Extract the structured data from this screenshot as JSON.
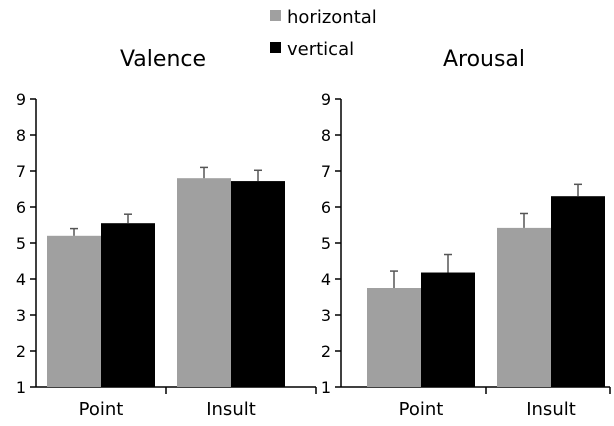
{
  "legend": {
    "items": [
      {
        "label": "horizontal",
        "color": "#a0a0a0"
      },
      {
        "label": "vertical",
        "color": "#000000"
      }
    ]
  },
  "chart_data": [
    {
      "type": "bar",
      "title": "Valence",
      "categories": [
        "Point",
        "Insult"
      ],
      "ylim": [
        1,
        9
      ],
      "yticks": [
        1,
        2,
        3,
        4,
        5,
        6,
        7,
        8,
        9
      ],
      "grid": false,
      "legend_position": "top-center",
      "series": [
        {
          "name": "horizontal",
          "color": "#a0a0a0",
          "values": [
            5.2,
            6.8
          ],
          "error": [
            0.2,
            0.3
          ]
        },
        {
          "name": "vertical",
          "color": "#000000",
          "values": [
            5.55,
            6.72
          ],
          "error": [
            0.25,
            0.3
          ]
        }
      ]
    },
    {
      "type": "bar",
      "title": "Arousal",
      "categories": [
        "Point",
        "Insult"
      ],
      "ylim": [
        1,
        9
      ],
      "yticks": [
        1,
        2,
        3,
        4,
        5,
        6,
        7,
        8,
        9
      ],
      "grid": false,
      "series": [
        {
          "name": "horizontal",
          "color": "#a0a0a0",
          "values": [
            3.75,
            5.42
          ],
          "error": [
            0.47,
            0.4
          ]
        },
        {
          "name": "vertical",
          "color": "#000000",
          "values": [
            4.18,
            6.3
          ],
          "error": [
            0.5,
            0.33
          ]
        }
      ]
    }
  ]
}
